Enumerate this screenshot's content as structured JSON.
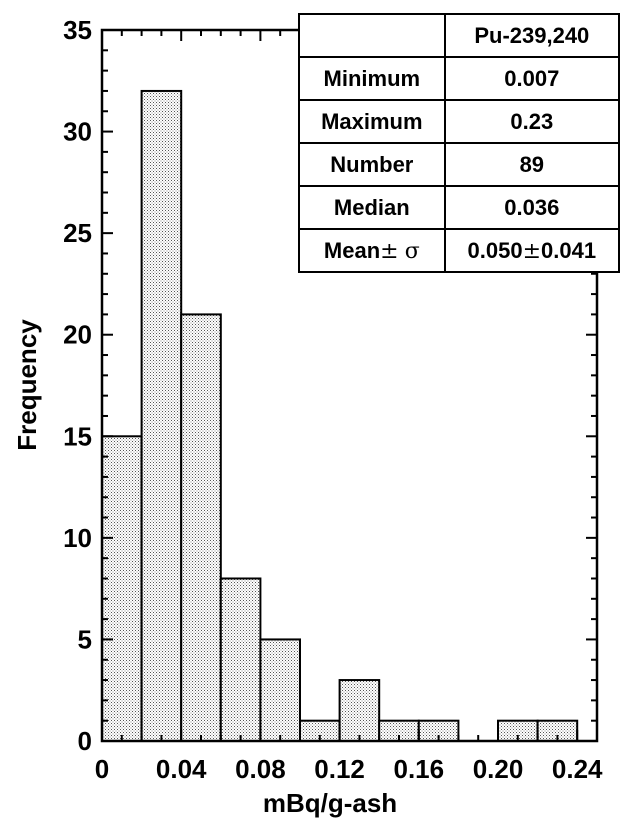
{
  "chart_data": {
    "type": "bar",
    "xlabel": "mBq/g-ash",
    "ylabel": "Frequency",
    "xlim": [
      0,
      0.25
    ],
    "ylim": [
      0,
      35
    ],
    "x_ticks": [
      "0",
      "0.04",
      "0.08",
      "0.12",
      "0.16",
      "0.20",
      "0.24"
    ],
    "y_ticks": [
      "0",
      "5",
      "10",
      "15",
      "20",
      "25",
      "30",
      "35"
    ],
    "bin_width": 0.02,
    "bins": [
      {
        "start": 0.0,
        "end": 0.02,
        "count": 15
      },
      {
        "start": 0.02,
        "end": 0.04,
        "count": 32
      },
      {
        "start": 0.04,
        "end": 0.06,
        "count": 21
      },
      {
        "start": 0.06,
        "end": 0.08,
        "count": 8
      },
      {
        "start": 0.08,
        "end": 0.1,
        "count": 5
      },
      {
        "start": 0.1,
        "end": 0.12,
        "count": 1
      },
      {
        "start": 0.12,
        "end": 0.14,
        "count": 3
      },
      {
        "start": 0.14,
        "end": 0.16,
        "count": 1
      },
      {
        "start": 0.16,
        "end": 0.18,
        "count": 1
      },
      {
        "start": 0.18,
        "end": 0.2,
        "count": 0
      },
      {
        "start": 0.2,
        "end": 0.22,
        "count": 1
      },
      {
        "start": 0.22,
        "end": 0.24,
        "count": 1
      }
    ],
    "fill_color": "#cfcfcf",
    "grid": false
  },
  "stats_table": {
    "header": "Pu-239,240",
    "rows": [
      {
        "label": "Minimum",
        "value": "0.007"
      },
      {
        "label": "Maximum",
        "value": "0.23"
      },
      {
        "label": "Number",
        "value": "89"
      },
      {
        "label": "Median",
        "value": "0.036"
      }
    ],
    "mean_row": {
      "label": "Mean",
      "pm": "±",
      "sigma": "σ",
      "mean": "0.050",
      "sd": "0.041"
    }
  }
}
